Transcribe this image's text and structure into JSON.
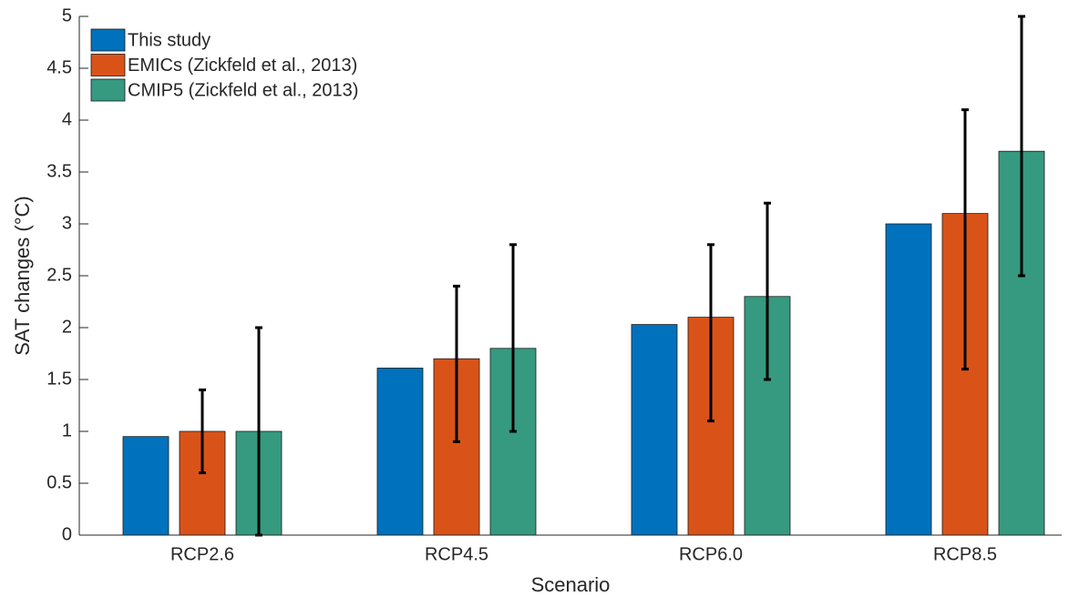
{
  "chart_data": {
    "type": "bar",
    "x_label": "Scenario",
    "y_label": "SAT changes (°C)",
    "categories": [
      "RCP2.6",
      "RCP4.5",
      "RCP6.0",
      "RCP8.5"
    ],
    "series": [
      {
        "name": "This study",
        "color": "#0072bd",
        "values": [
          0.95,
          1.61,
          2.03,
          3.0
        ]
      },
      {
        "name": "EMICs (Zickfeld et al., 2013)",
        "color": "#d95319",
        "values": [
          1.0,
          1.7,
          2.1,
          3.1
        ],
        "err_low": [
          0.6,
          0.9,
          1.1,
          1.6
        ],
        "err_high": [
          1.4,
          2.4,
          2.8,
          4.1
        ]
      },
      {
        "name": "CMIP5 (Zickfeld et al., 2013)",
        "color": "#359a80",
        "values": [
          1.0,
          1.8,
          2.3,
          3.7
        ],
        "err_low": [
          0.0,
          1.0,
          1.5,
          2.5
        ],
        "err_high": [
          2.0,
          2.8,
          3.2,
          5.0
        ]
      }
    ],
    "ylim": [
      0,
      5
    ],
    "yticks": [
      0,
      0.5,
      1,
      1.5,
      2,
      2.5,
      3,
      3.5,
      4,
      4.5,
      5
    ],
    "legend": "upper-left"
  }
}
